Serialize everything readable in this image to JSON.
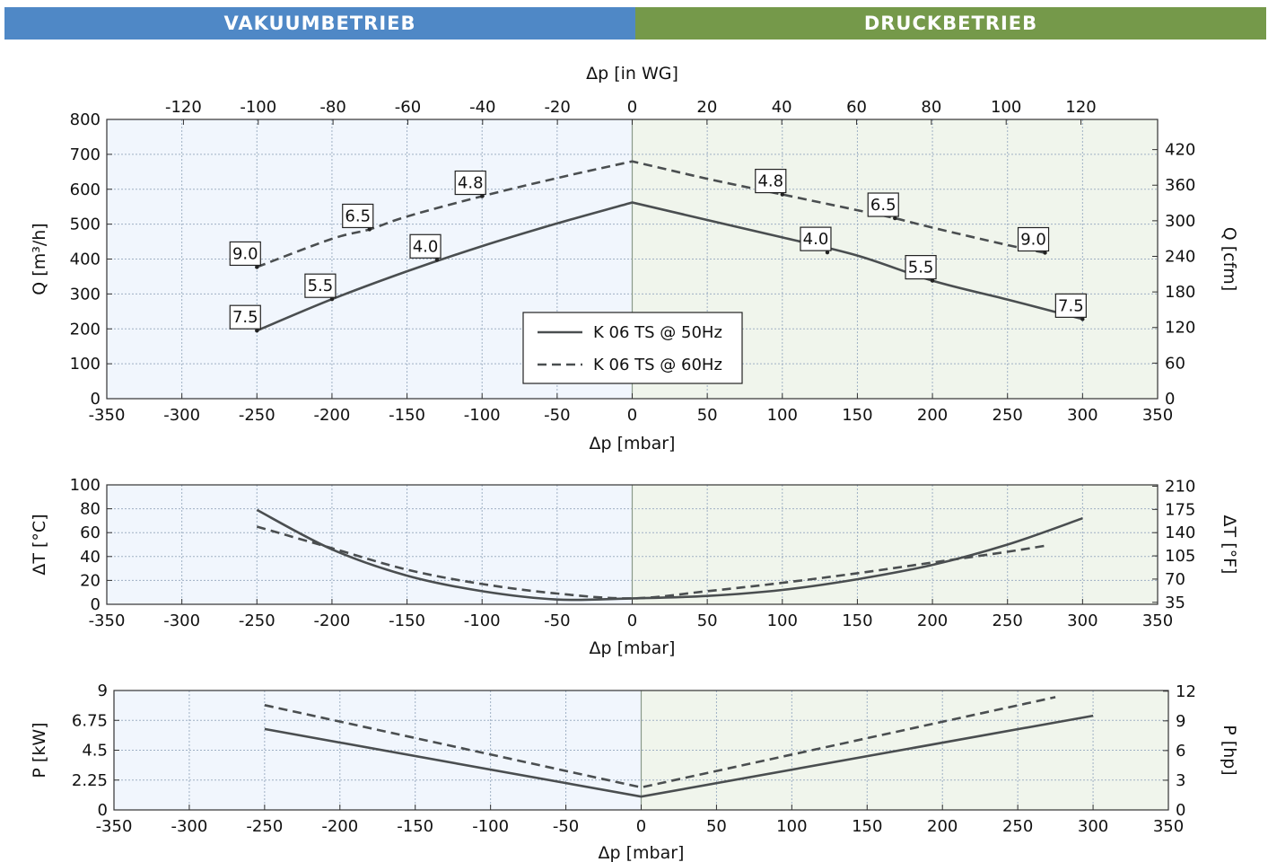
{
  "banners": {
    "vacuum": "VAKUUMBETRIEB",
    "pressure": "DRUCKBETRIEB"
  },
  "colors": {
    "vacuum_banner": "#4f88c6",
    "pressure_banner": "#75994a",
    "vacuum_area": "#f1f6fd",
    "pressure_area": "#f0f5ec",
    "curve": "#4a4e50"
  },
  "chart_data": [
    {
      "type": "line",
      "id": "flow",
      "xlabel": "Δp [mbar]",
      "x2label": "Δp [in WG]",
      "ylabel": "Q [m³/h]",
      "y2label": "Q [cfm]",
      "xlim": [
        -350,
        350
      ],
      "ylim": [
        0,
        800
      ],
      "x2lim": [
        -140.5,
        140.5
      ],
      "y2lim": [
        0,
        470.9
      ],
      "xticks": [
        -350,
        -300,
        -250,
        -200,
        -150,
        -100,
        -50,
        0,
        50,
        100,
        150,
        200,
        250,
        300,
        350
      ],
      "yticks": [
        0,
        100,
        200,
        300,
        400,
        500,
        600,
        700,
        800
      ],
      "x2ticks": [
        -120,
        -100,
        -80,
        -60,
        -40,
        -20,
        0,
        20,
        40,
        60,
        80,
        100,
        120
      ],
      "y2ticks": [
        0,
        60,
        120,
        180,
        240,
        300,
        360,
        420
      ],
      "grid": true,
      "legend_position": "bottom-center",
      "series": [
        {
          "name": "K 06 TS @ 50Hz",
          "style": "solid",
          "x": [
            -250,
            -200,
            -150,
            -100,
            -50,
            0,
            50,
            100,
            150,
            200,
            250,
            300
          ],
          "y": [
            195,
            285,
            365,
            437,
            502,
            562,
            512,
            462,
            410,
            338,
            284,
            228
          ]
        },
        {
          "name": "K 06 TS @ 60Hz",
          "style": "dashed",
          "x": [
            -250,
            -200,
            -175,
            -150,
            -100,
            -50,
            0,
            50,
            100,
            150,
            175,
            200,
            250,
            275
          ],
          "y": [
            377,
            458,
            485,
            522,
            580,
            632,
            680,
            630,
            585,
            540,
            517,
            490,
            440,
            418
          ]
        }
      ],
      "annotations": [
        {
          "x": -250,
          "y": 195,
          "text": "7.5"
        },
        {
          "x": -200,
          "y": 285,
          "text": "5.5"
        },
        {
          "x": -130,
          "y": 398,
          "text": "4.0"
        },
        {
          "x": -250,
          "y": 377,
          "text": "9.0"
        },
        {
          "x": -175,
          "y": 485,
          "text": "6.5"
        },
        {
          "x": -100,
          "y": 580,
          "text": "4.8"
        },
        {
          "x": 130,
          "y": 419,
          "text": "4.0"
        },
        {
          "x": 200,
          "y": 338,
          "text": "5.5"
        },
        {
          "x": 300,
          "y": 228,
          "text": "7.5"
        },
        {
          "x": 100,
          "y": 585,
          "text": "4.8"
        },
        {
          "x": 175,
          "y": 517,
          "text": "6.5"
        },
        {
          "x": 275,
          "y": 418,
          "text": "9.0"
        }
      ]
    },
    {
      "type": "line",
      "id": "temp",
      "xlabel": "Δp [mbar]",
      "ylabel": "ΔT [°C]",
      "y2label": "ΔT [°F]",
      "xlim": [
        -350,
        350
      ],
      "ylim": [
        0,
        100
      ],
      "y2lim": [
        32,
        212
      ],
      "xticks": [
        -350,
        -300,
        -250,
        -200,
        -150,
        -100,
        -50,
        0,
        50,
        100,
        150,
        200,
        250,
        300,
        350
      ],
      "yticks": [
        0,
        20,
        40,
        60,
        80,
        100
      ],
      "y2ticks": [
        35,
        70,
        105,
        140,
        175,
        210
      ],
      "grid": true,
      "series": [
        {
          "name": "K 06 TS @ 50Hz",
          "style": "solid",
          "x": [
            -250,
            -200,
            -150,
            -100,
            -50,
            0,
            50,
            100,
            150,
            200,
            250,
            300
          ],
          "y": [
            79,
            46,
            24,
            11,
            4,
            5,
            7,
            12,
            21,
            33,
            50,
            72
          ]
        },
        {
          "name": "K 06 TS @ 60Hz",
          "style": "dashed",
          "x": [
            -250,
            -200,
            -150,
            -100,
            -50,
            0,
            50,
            100,
            150,
            200,
            250,
            275
          ],
          "y": [
            65,
            47,
            29,
            17,
            9,
            5,
            11,
            18,
            26,
            35,
            44,
            49
          ]
        }
      ]
    },
    {
      "type": "line",
      "id": "power",
      "xlabel": "Δp [mbar]",
      "ylabel": "P [kW]",
      "y2label": "P [hp]",
      "xlim": [
        -350,
        350
      ],
      "ylim": [
        0,
        9
      ],
      "y2lim": [
        0,
        12.07
      ],
      "xticks": [
        -350,
        -300,
        -250,
        -200,
        -150,
        -100,
        -50,
        0,
        50,
        100,
        150,
        200,
        250,
        300,
        350
      ],
      "yticks": [
        0,
        2.25,
        4.5,
        6.75,
        9
      ],
      "ytick_labels": [
        "0",
        "2.25",
        "4.5",
        "6.75",
        "9"
      ],
      "y2ticks": [
        0,
        3,
        6,
        9,
        12
      ],
      "grid": true,
      "series": [
        {
          "name": "K 06 TS @ 50Hz",
          "style": "solid",
          "x": [
            -250,
            0,
            300
          ],
          "y": [
            6.1,
            1.0,
            7.1
          ]
        },
        {
          "name": "K 06 TS @ 60Hz",
          "style": "dashed",
          "x": [
            -250,
            0,
            275
          ],
          "y": [
            7.9,
            1.7,
            8.5
          ]
        }
      ]
    }
  ]
}
